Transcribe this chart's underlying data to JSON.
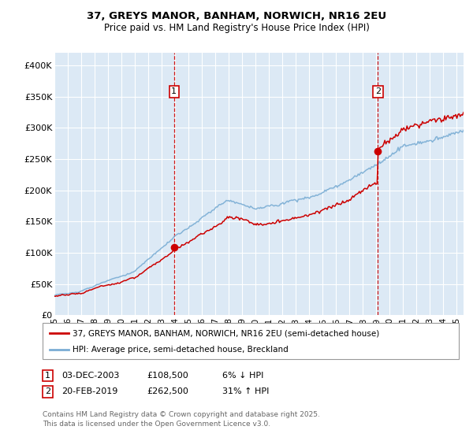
{
  "title": "37, GREYS MANOR, BANHAM, NORWICH, NR16 2EU",
  "subtitle": "Price paid vs. HM Land Registry's House Price Index (HPI)",
  "ylabel_ticks": [
    "£0",
    "£50K",
    "£100K",
    "£150K",
    "£200K",
    "£250K",
    "£300K",
    "£350K",
    "£400K"
  ],
  "ytick_values": [
    0,
    50000,
    100000,
    150000,
    200000,
    250000,
    300000,
    350000,
    400000
  ],
  "ylim": [
    0,
    420000
  ],
  "xlim_start": 1995.0,
  "xlim_end": 2025.5,
  "sale1_date": 2003.92,
  "sale1_price": 108500,
  "sale2_date": 2019.12,
  "sale2_price": 262500,
  "line_color_property": "#cc0000",
  "line_color_hpi": "#7aadd4",
  "legend_label_property": "37, GREYS MANOR, BANHAM, NORWICH, NR16 2EU (semi-detached house)",
  "legend_label_hpi": "HPI: Average price, semi-detached house, Breckland",
  "annotation1_date": "03-DEC-2003",
  "annotation1_price": "£108,500",
  "annotation1_hpi": "6% ↓ HPI",
  "annotation2_date": "20-FEB-2019",
  "annotation2_price": "£262,500",
  "annotation2_hpi": "31% ↑ HPI",
  "footer": "Contains HM Land Registry data © Crown copyright and database right 2025.\nThis data is licensed under the Open Government Licence v3.0.",
  "fig_bg_color": "#ffffff",
  "plot_bg_color": "#dce9f5",
  "highlight_bg_color": "#e8f0fa",
  "grid_color": "#ffffff",
  "vline_color": "#cc0000",
  "label_box_color": "#cc0000",
  "label_text_color": "#000000"
}
